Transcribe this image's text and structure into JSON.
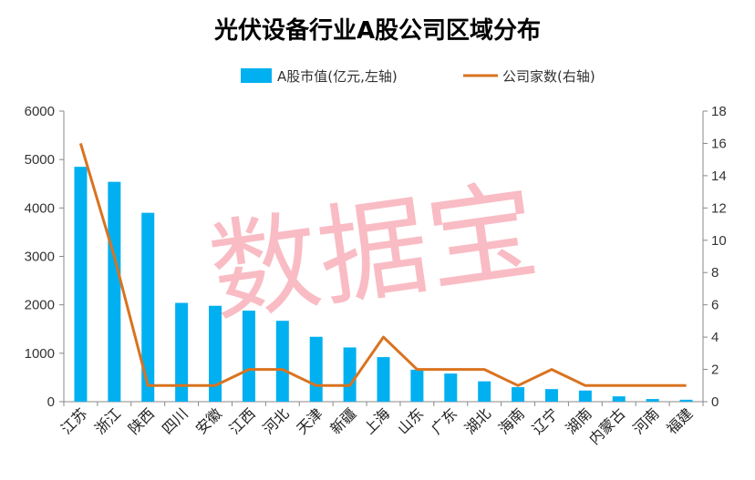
{
  "chart_data": {
    "type": "bar",
    "title": "光伏设备行业A股公司区域分布",
    "categories": [
      "江苏",
      "浙江",
      "陕西",
      "四川",
      "安徽",
      "江西",
      "河北",
      "天津",
      "新疆",
      "上海",
      "山东",
      "广东",
      "湖北",
      "海南",
      "辽宁",
      "湖南",
      "内蒙古",
      "河南",
      "福建"
    ],
    "series": [
      {
        "name": "A股市值(亿元,左轴)",
        "type": "bar",
        "axis": "left",
        "color": "#00b0f0",
        "values": [
          4850,
          4540,
          3900,
          2040,
          1980,
          1880,
          1670,
          1340,
          1120,
          920,
          660,
          580,
          420,
          300,
          260,
          230,
          110,
          55,
          40
        ]
      },
      {
        "name": "公司家数(右轴)",
        "type": "line",
        "axis": "right",
        "color": "#d9731f",
        "values": [
          16,
          9,
          1,
          1,
          1,
          2,
          2,
          1,
          1,
          4,
          2,
          2,
          2,
          1,
          2,
          1,
          1,
          1,
          1
        ]
      }
    ],
    "y_left": {
      "min": 0,
      "max": 6000,
      "ticks": [
        0,
        1000,
        2000,
        3000,
        4000,
        5000,
        6000
      ]
    },
    "y_right": {
      "min": 0,
      "max": 18,
      "ticks": [
        0,
        2,
        4,
        6,
        8,
        10,
        12,
        14,
        16,
        18
      ]
    },
    "grid": false,
    "legend_position": "top"
  },
  "watermark": {
    "text": "数据宝",
    "color": "#f26d7d"
  }
}
